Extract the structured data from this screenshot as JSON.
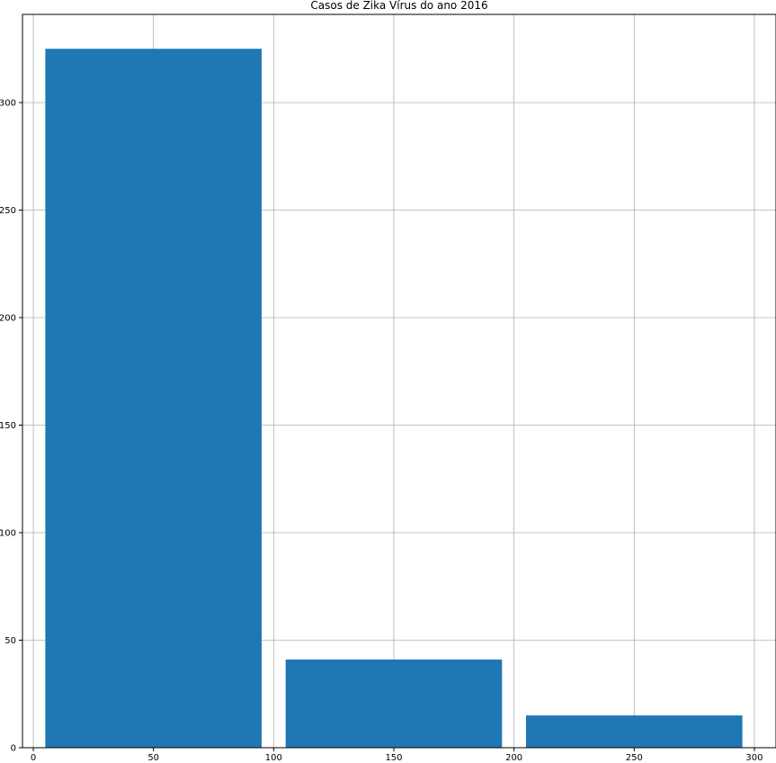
{
  "chart_data": {
    "type": "histogram",
    "title": "Casos de Zika Vírus do ano 2016",
    "xlabel": "",
    "ylabel": "",
    "bins": [
      {
        "x_start": 5,
        "x_end": 95,
        "value": 325
      },
      {
        "x_start": 105,
        "x_end": 195,
        "value": 41
      },
      {
        "x_start": 205,
        "x_end": 295,
        "value": 15
      }
    ],
    "xlim": [
      -4.5,
      309
    ],
    "ylim": [
      0,
      341
    ],
    "xticks": [
      0,
      50,
      100,
      150,
      200,
      250,
      300
    ],
    "yticks": [
      0,
      50,
      100,
      150,
      200,
      250,
      300
    ],
    "xtick_labels": [
      "0",
      "50",
      "100",
      "150",
      "200",
      "250",
      "300"
    ],
    "ytick_labels": [
      "0",
      "50",
      "100",
      "150",
      "200",
      "250",
      "300"
    ],
    "grid": true,
    "colors": {
      "bar": "#1f77b4",
      "grid": "#b0b0b0",
      "axis": "#000000"
    }
  }
}
